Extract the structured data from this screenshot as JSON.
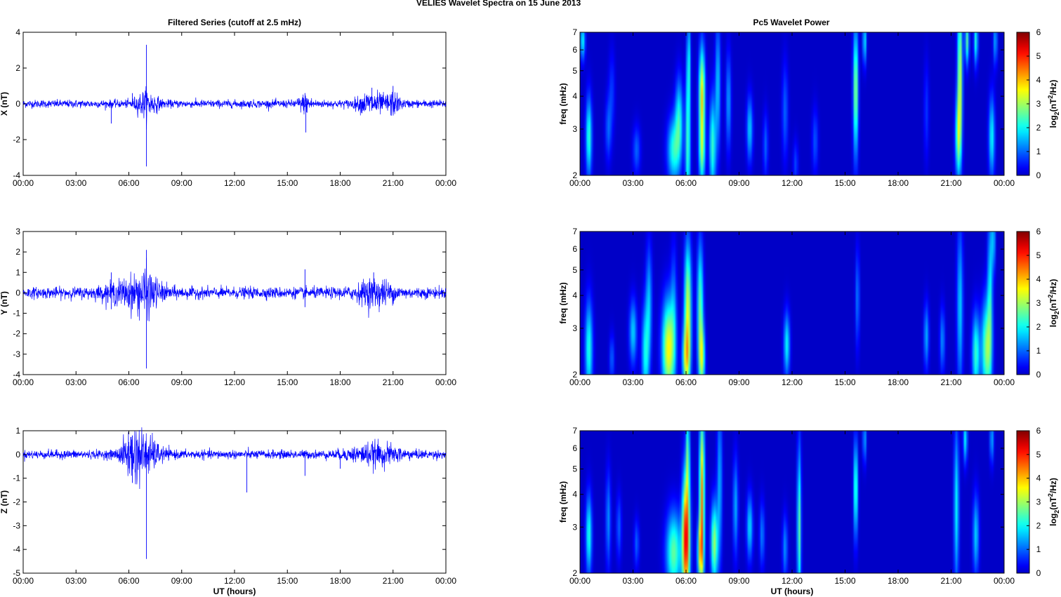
{
  "figure": {
    "title": "VELIES Wavelet Spectra on 15 June      2013",
    "left_column_title": "Filtered Series (cutoff at 2.5 mHz)",
    "right_column_title": "Pc5 Wavelet Power",
    "x_label": "UT (hours)",
    "x_ticks": [
      "00:00",
      "03:00",
      "06:00",
      "09:00",
      "12:00",
      "15:00",
      "18:00",
      "21:00",
      "00:00"
    ],
    "freq_label": "freq (mHz)",
    "freq_ticks": [
      "2",
      "3",
      "4",
      "5",
      "6",
      "7"
    ],
    "colorbar_label_parts": [
      "log",
      "2",
      "(nT",
      "2",
      "/Hz)"
    ],
    "colorbar_ticks": [
      "0",
      "1",
      "2",
      "3",
      "4",
      "5",
      "6"
    ],
    "colors": {
      "trace": "#0000ff",
      "background_power": "#00008f",
      "axes": "#000000"
    }
  },
  "chart_data": [
    {
      "type": "line",
      "panel": "X",
      "ylabel": "X (nT)",
      "x_range_hours": [
        0,
        24
      ],
      "ylim": [
        -4,
        4
      ],
      "y_ticks": [
        4,
        2,
        0,
        -2,
        -4
      ],
      "noise_level": 0.12,
      "bursts": [
        {
          "t": 7.0,
          "amp": 0.35,
          "width": 0.6
        },
        {
          "t": 19.8,
          "amp": 0.3,
          "width": 0.8
        },
        {
          "t": 21.0,
          "amp": 0.25,
          "width": 0.4
        },
        {
          "t": 16.0,
          "amp": 0.2,
          "width": 0.4
        }
      ],
      "spikes": [
        {
          "t": 7.0,
          "y": 3.3
        },
        {
          "t": 7.0,
          "y": -3.5
        },
        {
          "t": 5.0,
          "y": -1.1
        },
        {
          "t": 16.05,
          "y": -1.6
        },
        {
          "t": 16.0,
          "y": 0.6
        },
        {
          "t": 21.0,
          "y": 1.0
        },
        {
          "t": 19.8,
          "y": 0.9
        },
        {
          "t": 6.2,
          "y": 0.6
        }
      ]
    },
    {
      "type": "line",
      "panel": "Y",
      "ylabel": "Y (nT)",
      "x_range_hours": [
        0,
        24
      ],
      "ylim": [
        -4,
        3
      ],
      "y_ticks": [
        3,
        2,
        1,
        0,
        -1,
        -2,
        -3,
        -4
      ],
      "noise_level": 0.15,
      "bursts": [
        {
          "t": 6.3,
          "amp": 0.3,
          "width": 1.5
        },
        {
          "t": 20.0,
          "amp": 0.3,
          "width": 1.0
        },
        {
          "t": 7.0,
          "amp": 0.3,
          "width": 0.6
        }
      ],
      "spikes": [
        {
          "t": 7.0,
          "y": 2.1
        },
        {
          "t": 7.0,
          "y": -3.7
        },
        {
          "t": 5.0,
          "y": 1.0
        },
        {
          "t": 5.0,
          "y": -0.8
        },
        {
          "t": 16.0,
          "y": 1.15
        },
        {
          "t": 16.0,
          "y": -0.7
        },
        {
          "t": 19.9,
          "y": 1.0
        },
        {
          "t": 6.2,
          "y": -0.8
        }
      ]
    },
    {
      "type": "line",
      "panel": "Z",
      "ylabel": "Z (nT)",
      "x_range_hours": [
        0,
        24
      ],
      "ylim": [
        -5,
        1
      ],
      "y_ticks": [
        1,
        0,
        -1,
        -2,
        -3,
        -4,
        -5
      ],
      "noise_level": 0.1,
      "bursts": [
        {
          "t": 6.2,
          "amp": 0.45,
          "width": 0.6
        },
        {
          "t": 7.0,
          "amp": 0.35,
          "width": 0.8
        },
        {
          "t": 20.0,
          "amp": 0.2,
          "width": 1.4
        }
      ],
      "spikes": [
        {
          "t": 7.0,
          "y": -4.4
        },
        {
          "t": 6.2,
          "y": 0.8
        },
        {
          "t": 6.2,
          "y": -1.2
        },
        {
          "t": 12.7,
          "y": -1.6
        },
        {
          "t": 16.0,
          "y": -0.9
        },
        {
          "t": 18.0,
          "y": -0.6
        }
      ]
    },
    {
      "type": "heatmap",
      "panel": "X",
      "ylabel": "freq (mHz)",
      "x_range_hours": [
        0,
        24
      ],
      "ylim": [
        2,
        7
      ],
      "y_scale": "log",
      "zlim": [
        0,
        6
      ],
      "colormap": "jet",
      "blobs": [
        {
          "t": 0.5,
          "f": 2.8,
          "v": 2.3,
          "st": 0.12,
          "sf": 0.25
        },
        {
          "t": 0.15,
          "f": 6.5,
          "v": 2.0,
          "st": 0.1,
          "sf": 0.12
        },
        {
          "t": 1.6,
          "f": 3.0,
          "v": 1.0,
          "st": 0.12,
          "sf": 0.2
        },
        {
          "t": 1.8,
          "f": 4.2,
          "v": 0.7,
          "st": 0.12,
          "sf": 0.25
        },
        {
          "t": 3.2,
          "f": 2.5,
          "v": 1.0,
          "st": 0.15,
          "sf": 0.15
        },
        {
          "t": 5.3,
          "f": 2.5,
          "v": 2.2,
          "st": 0.25,
          "sf": 0.2
        },
        {
          "t": 5.6,
          "f": 3.3,
          "v": 2.0,
          "st": 0.15,
          "sf": 0.25
        },
        {
          "t": 6.1,
          "f": 2.6,
          "v": 2.4,
          "st": 0.1,
          "sf": 0.45
        },
        {
          "t": 6.15,
          "f": 5.5,
          "v": 1.7,
          "st": 0.07,
          "sf": 0.3
        },
        {
          "t": 6.9,
          "f": 4.0,
          "v": 3.8,
          "st": 0.12,
          "sf": 0.3
        },
        {
          "t": 6.9,
          "f": 2.4,
          "v": 2.2,
          "st": 0.12,
          "sf": 0.2
        },
        {
          "t": 7.5,
          "f": 2.6,
          "v": 2.3,
          "st": 0.13,
          "sf": 0.3
        },
        {
          "t": 7.8,
          "f": 4.4,
          "v": 1.7,
          "st": 0.1,
          "sf": 0.4
        },
        {
          "t": 8.4,
          "f": 3.8,
          "v": 1.4,
          "st": 0.1,
          "sf": 0.3
        },
        {
          "t": 9.6,
          "f": 3.0,
          "v": 1.7,
          "st": 0.12,
          "sf": 0.2
        },
        {
          "t": 10.5,
          "f": 2.6,
          "v": 1.0,
          "st": 0.1,
          "sf": 0.2
        },
        {
          "t": 11.6,
          "f": 3.5,
          "v": 1.0,
          "st": 0.12,
          "sf": 0.3
        },
        {
          "t": 12.2,
          "f": 2.2,
          "v": 0.8,
          "st": 0.1,
          "sf": 0.15
        },
        {
          "t": 13.3,
          "f": 2.7,
          "v": 0.9,
          "st": 0.12,
          "sf": 0.2
        },
        {
          "t": 15.6,
          "f": 4.2,
          "v": 3.0,
          "st": 0.1,
          "sf": 0.4
        },
        {
          "t": 16.1,
          "f": 6.5,
          "v": 2.0,
          "st": 0.07,
          "sf": 0.15
        },
        {
          "t": 19.6,
          "f": 3.5,
          "v": 0.7,
          "st": 0.1,
          "sf": 0.3
        },
        {
          "t": 21.4,
          "f": 2.8,
          "v": 2.5,
          "st": 0.12,
          "sf": 0.25
        },
        {
          "t": 21.5,
          "f": 5.0,
          "v": 3.2,
          "st": 0.1,
          "sf": 0.45
        },
        {
          "t": 21.9,
          "f": 6.5,
          "v": 2.5,
          "st": 0.08,
          "sf": 0.15
        },
        {
          "t": 22.4,
          "f": 6.5,
          "v": 2.2,
          "st": 0.08,
          "sf": 0.15
        },
        {
          "t": 23.3,
          "f": 2.8,
          "v": 2.0,
          "st": 0.12,
          "sf": 0.25
        },
        {
          "t": 23.5,
          "f": 6.5,
          "v": 1.5,
          "st": 0.08,
          "sf": 0.15
        }
      ]
    },
    {
      "type": "heatmap",
      "panel": "Y",
      "ylabel": "freq (mHz)",
      "x_range_hours": [
        0,
        24
      ],
      "ylim": [
        2,
        7
      ],
      "y_scale": "log",
      "zlim": [
        0,
        6
      ],
      "colormap": "jet",
      "blobs": [
        {
          "t": 0.5,
          "f": 2.5,
          "v": 2.2,
          "st": 0.15,
          "sf": 0.3
        },
        {
          "t": 1.8,
          "f": 2.3,
          "v": 1.0,
          "st": 0.1,
          "sf": 0.15
        },
        {
          "t": 3.0,
          "f": 2.9,
          "v": 1.7,
          "st": 0.15,
          "sf": 0.2
        },
        {
          "t": 3.7,
          "f": 2.4,
          "v": 2.0,
          "st": 0.15,
          "sf": 0.3
        },
        {
          "t": 3.9,
          "f": 3.8,
          "v": 1.5,
          "st": 0.12,
          "sf": 0.35
        },
        {
          "t": 5.0,
          "f": 2.5,
          "v": 3.6,
          "st": 0.25,
          "sf": 0.3
        },
        {
          "t": 5.3,
          "f": 3.6,
          "v": 1.0,
          "st": 0.12,
          "sf": 0.4
        },
        {
          "t": 6.1,
          "f": 3.6,
          "v": 3.3,
          "st": 0.14,
          "sf": 0.4
        },
        {
          "t": 6.0,
          "f": 2.3,
          "v": 2.7,
          "st": 0.15,
          "sf": 0.2
        },
        {
          "t": 6.8,
          "f": 3.6,
          "v": 2.6,
          "st": 0.12,
          "sf": 0.4
        },
        {
          "t": 6.9,
          "f": 2.3,
          "v": 2.6,
          "st": 0.12,
          "sf": 0.2
        },
        {
          "t": 11.7,
          "f": 2.6,
          "v": 2.0,
          "st": 0.12,
          "sf": 0.2
        },
        {
          "t": 15.7,
          "f": 3.9,
          "v": 1.2,
          "st": 0.08,
          "sf": 0.3
        },
        {
          "t": 19.6,
          "f": 2.8,
          "v": 1.5,
          "st": 0.1,
          "sf": 0.2
        },
        {
          "t": 20.5,
          "f": 2.7,
          "v": 1.3,
          "st": 0.1,
          "sf": 0.2
        },
        {
          "t": 21.5,
          "f": 3.6,
          "v": 1.7,
          "st": 0.12,
          "sf": 0.5
        },
        {
          "t": 22.4,
          "f": 2.4,
          "v": 2.3,
          "st": 0.15,
          "sf": 0.25
        },
        {
          "t": 23.0,
          "f": 2.5,
          "v": 2.8,
          "st": 0.2,
          "sf": 0.3
        },
        {
          "t": 23.2,
          "f": 4.2,
          "v": 1.8,
          "st": 0.1,
          "sf": 0.5
        },
        {
          "t": 23.4,
          "f": 6.5,
          "v": 1.5,
          "st": 0.08,
          "sf": 0.2
        }
      ]
    },
    {
      "type": "heatmap",
      "panel": "Z",
      "ylabel": "freq (mHz)",
      "x_range_hours": [
        0,
        24
      ],
      "ylim": [
        2,
        7
      ],
      "y_scale": "log",
      "zlim": [
        0,
        6
      ],
      "colormap": "jet",
      "blobs": [
        {
          "t": 0.5,
          "f": 2.8,
          "v": 2.2,
          "st": 0.12,
          "sf": 0.25
        },
        {
          "t": 1.6,
          "f": 3.2,
          "v": 1.3,
          "st": 0.1,
          "sf": 0.3
        },
        {
          "t": 2.2,
          "f": 3.0,
          "v": 1.0,
          "st": 0.1,
          "sf": 0.2
        },
        {
          "t": 3.2,
          "f": 2.6,
          "v": 1.0,
          "st": 0.1,
          "sf": 0.15
        },
        {
          "t": 5.3,
          "f": 2.4,
          "v": 2.6,
          "st": 0.3,
          "sf": 0.25
        },
        {
          "t": 6.0,
          "f": 2.7,
          "v": 5.4,
          "st": 0.15,
          "sf": 0.4
        },
        {
          "t": 6.1,
          "f": 5.8,
          "v": 2.2,
          "st": 0.07,
          "sf": 0.3
        },
        {
          "t": 6.9,
          "f": 4.0,
          "v": 4.3,
          "st": 0.1,
          "sf": 0.5
        },
        {
          "t": 6.8,
          "f": 2.4,
          "v": 2.8,
          "st": 0.12,
          "sf": 0.2
        },
        {
          "t": 7.6,
          "f": 2.6,
          "v": 3.0,
          "st": 0.14,
          "sf": 0.25
        },
        {
          "t": 7.9,
          "f": 4.5,
          "v": 1.5,
          "st": 0.1,
          "sf": 0.5
        },
        {
          "t": 8.8,
          "f": 3.6,
          "v": 1.5,
          "st": 0.1,
          "sf": 0.3
        },
        {
          "t": 9.6,
          "f": 3.0,
          "v": 1.8,
          "st": 0.12,
          "sf": 0.2
        },
        {
          "t": 10.3,
          "f": 2.8,
          "v": 1.2,
          "st": 0.1,
          "sf": 0.2
        },
        {
          "t": 11.6,
          "f": 2.5,
          "v": 1.3,
          "st": 0.1,
          "sf": 0.2
        },
        {
          "t": 12.4,
          "f": 3.0,
          "v": 2.6,
          "st": 0.08,
          "sf": 0.5
        },
        {
          "t": 15.6,
          "f": 4.2,
          "v": 2.6,
          "st": 0.08,
          "sf": 0.3
        },
        {
          "t": 16.1,
          "f": 6.5,
          "v": 1.5,
          "st": 0.07,
          "sf": 0.15
        },
        {
          "t": 21.3,
          "f": 3.6,
          "v": 2.0,
          "st": 0.1,
          "sf": 0.5
        },
        {
          "t": 21.8,
          "f": 6.5,
          "v": 2.0,
          "st": 0.08,
          "sf": 0.15
        },
        {
          "t": 22.4,
          "f": 2.8,
          "v": 1.7,
          "st": 0.12,
          "sf": 0.25
        },
        {
          "t": 23.3,
          "f": 6.5,
          "v": 1.5,
          "st": 0.08,
          "sf": 0.15
        }
      ]
    }
  ]
}
